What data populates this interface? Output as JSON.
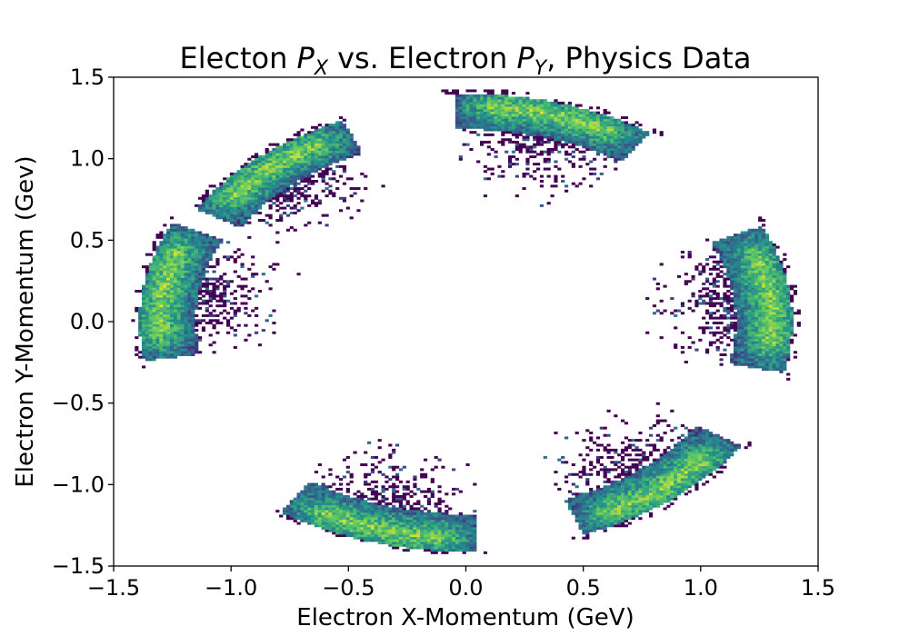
{
  "chart_data": {
    "type": "heatmap",
    "title": {
      "pre": "Electon ",
      "px_var": "P",
      "px_sub": "X",
      "mid": " vs. Electron ",
      "py_var": "P",
      "py_sub": "Y",
      "post": ", Physics Data"
    },
    "xlabel": "Electron X-Momentum (GeV)",
    "ylabel": "Electron Y-Momentum (Gev)",
    "xlim": [
      -1.5,
      1.5
    ],
    "ylim": [
      -1.5,
      1.5
    ],
    "x_ticks": [
      -1.5,
      -1.0,
      -0.5,
      0.0,
      0.5,
      1.0,
      1.5
    ],
    "y_ticks": [
      -1.5,
      -1.0,
      -0.5,
      0.0,
      0.5,
      1.0,
      1.5
    ],
    "x_tick_labels": [
      "−1.5",
      "−1.0",
      "−0.5",
      "0.0",
      "0.5",
      "1.0",
      "1.5"
    ],
    "y_tick_labels": [
      "−1.5",
      "−1.0",
      "−0.5",
      "0.0",
      "0.5",
      "1.0",
      "1.5"
    ],
    "grid": false,
    "colormap": "viridis",
    "bin_width": 0.015,
    "sectors": [
      {
        "center_angle_deg": 131,
        "r_inner": 1.12,
        "r_outer": 1.34,
        "half_width_deg": 18
      },
      {
        "center_angle_deg": 74,
        "r_inner": 1.18,
        "r_outer": 1.4,
        "half_width_deg": 18
      },
      {
        "center_angle_deg": 6,
        "r_inner": 1.15,
        "r_outer": 1.39,
        "half_width_deg": 19
      },
      {
        "center_angle_deg": -51,
        "r_inner": 1.17,
        "r_outer": 1.4,
        "half_width_deg": 18
      },
      {
        "center_angle_deg": -106,
        "r_inner": 1.18,
        "r_outer": 1.41,
        "half_width_deg": 18
      },
      {
        "center_angle_deg": 172,
        "r_inner": 1.15,
        "r_outer": 1.39,
        "half_width_deg": 18
      }
    ],
    "sparse_halo": {
      "r_inner": 0.7,
      "r_outer": 1.15
    },
    "colors": {
      "low": "#440154",
      "mid_low": "#31688e",
      "mid": "#21908d",
      "mid_high": "#35b779",
      "high": "#fde725"
    }
  }
}
